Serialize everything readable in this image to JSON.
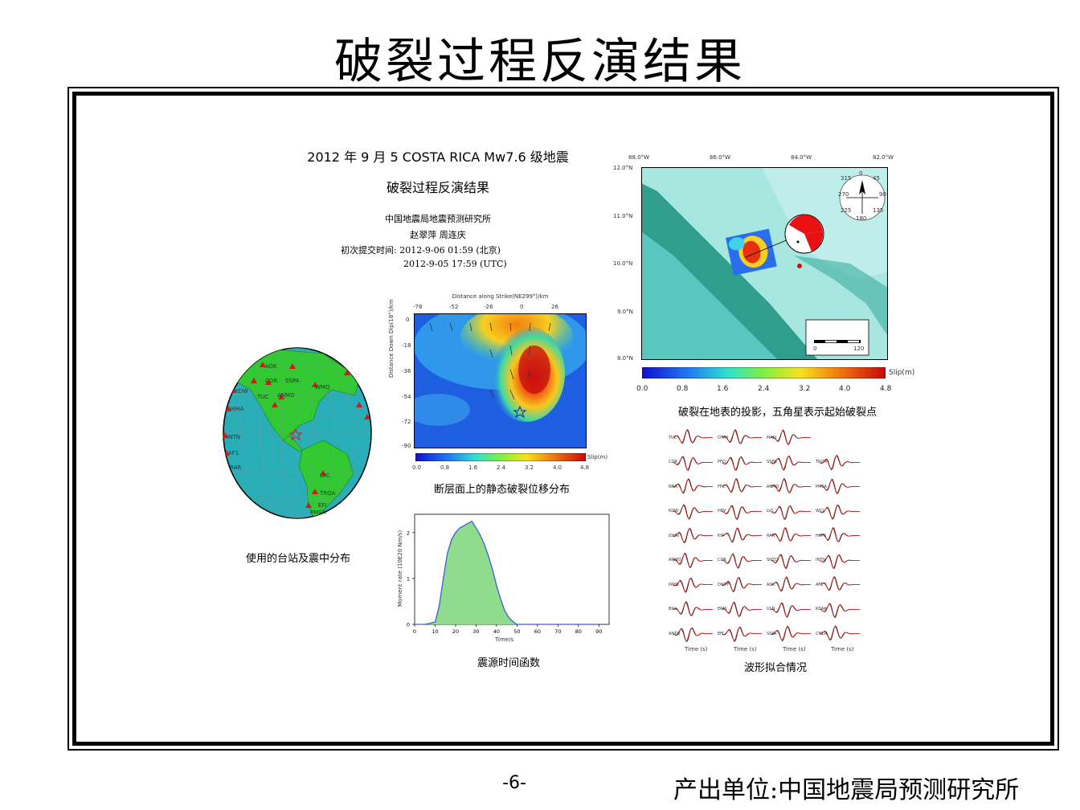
{
  "slide": {
    "title": "破裂过程反演结果",
    "page_number": "-6-",
    "producer": "产出单位:中国地震局预测研究所"
  },
  "header_block": {
    "event_line": "2012 年 9 月 5 COSTA RICA Mw7.6 级地震",
    "subtitle": "破裂过程反演结果",
    "institute": "中国地震局地震预测研究所",
    "authors": "赵翠萍  周连庆",
    "submit_line1": "初次提交时间: 2012-9-06 01:59 (北京)",
    "submit_line2": "2012-9-05 17:59 (UTC)"
  },
  "globe": {
    "caption": "使用的台站及震中分布",
    "station_labels": [
      "ADK",
      "COR",
      "SSPA",
      "ANMO",
      "WMQ",
      "TUC",
      "KDW",
      "HIHA",
      "INTN",
      "AF1",
      "RAR",
      "LVC",
      "TRQA",
      "EFI",
      "PMSA"
    ]
  },
  "slip_section": {
    "top_axis_title": "Distance along Strike(NE299°)/km",
    "x_ticks": [
      "-78",
      "-52",
      "-26",
      "0",
      "26"
    ],
    "y_axis_title": "Distance Down Dip(18°)/km",
    "y_ticks": [
      "0",
      "-18",
      "-36",
      "-54",
      "-72",
      "-90"
    ],
    "colorbar_ticks": [
      "0.0",
      "0.8",
      "1.6",
      "2.4",
      "3.2",
      "4.0",
      "4.8"
    ],
    "colorbar_unit": "Slip(m)",
    "caption": "断层面上的静态破裂位移分布"
  },
  "stf": {
    "y_axis_title": "Moment rate (10E20 Nm/s)",
    "y_ticks": [
      "0",
      "1",
      "2"
    ],
    "x_ticks": [
      "0",
      "10",
      "20",
      "30",
      "40",
      "50",
      "60",
      "70",
      "80",
      "90"
    ],
    "x_axis_title": "Time/s",
    "caption": "震源时间函数",
    "chart_data": {
      "type": "area",
      "x": [
        0,
        5,
        10,
        12,
        14,
        16,
        18,
        20,
        22,
        24,
        26,
        28,
        30,
        32,
        34,
        36,
        38,
        40,
        42,
        44,
        46,
        48,
        50,
        55,
        60,
        70,
        80,
        90
      ],
      "values": [
        0,
        0,
        0.05,
        0.4,
        1.0,
        1.55,
        1.85,
        2.0,
        2.1,
        2.15,
        2.2,
        2.25,
        2.1,
        1.95,
        1.75,
        1.5,
        1.2,
        0.85,
        0.55,
        0.3,
        0.15,
        0.06,
        0,
        0,
        0,
        0,
        0,
        0
      ],
      "xlabel": "Time/s",
      "ylabel": "Moment rate (10E20 Nm/s)",
      "xlim": [
        0,
        95
      ],
      "ylim": [
        0,
        2.4
      ]
    }
  },
  "map": {
    "lon_ticks": [
      "88.0°W",
      "86.0°W",
      "84.0°W",
      "82.0°W"
    ],
    "lat_ticks": [
      "12.0°N",
      "11.0°N",
      "10.0°N",
      "9.0°N",
      "8.0°N"
    ],
    "scale_ticks": [
      "0",
      "120"
    ],
    "compass_ticks": [
      "0",
      "45",
      "90",
      "135",
      "180",
      "225",
      "270",
      "315"
    ],
    "colorbar_ticks": [
      "0.0",
      "0.8",
      "1.6",
      "2.4",
      "3.2",
      "4.0",
      "4.8"
    ],
    "colorbar_unit": "Slip(m)",
    "caption": "破裂在地表的投影，五角星表示起始破裂点"
  },
  "waveforms": {
    "caption": "波形拟合情况",
    "time_label": "Time (s)",
    "rows": [
      [
        "TUC",
        "OTAV",
        "MACI"
      ],
      [
        "COR",
        "PFO",
        "SSPA",
        "TRQA"
      ],
      [
        "NNA",
        "FFC",
        "ANMO",
        "PMSA"
      ],
      [
        "KDW",
        "HRV",
        "LVC",
        "WCI"
      ],
      [
        "JOHN",
        "KIP",
        "RAR",
        "HKPS"
      ],
      [
        "ANMO",
        "COR",
        "SNZO",
        "INTN"
      ],
      [
        "PAYG",
        "DWPF",
        "ADK",
        "AF1"
      ],
      [
        "BILL",
        "ERM",
        "ULN",
        "KDAK"
      ],
      [
        "ANTO",
        "EFI",
        "SSPA",
        "CMLA"
      ]
    ]
  },
  "colors": {
    "globe_ocean": "#29aeb8",
    "globe_land": "#32c832",
    "stf_fill": "#8fdc8f",
    "stf_line": "#3a5fd0",
    "station_marker": "#d11a1a"
  }
}
